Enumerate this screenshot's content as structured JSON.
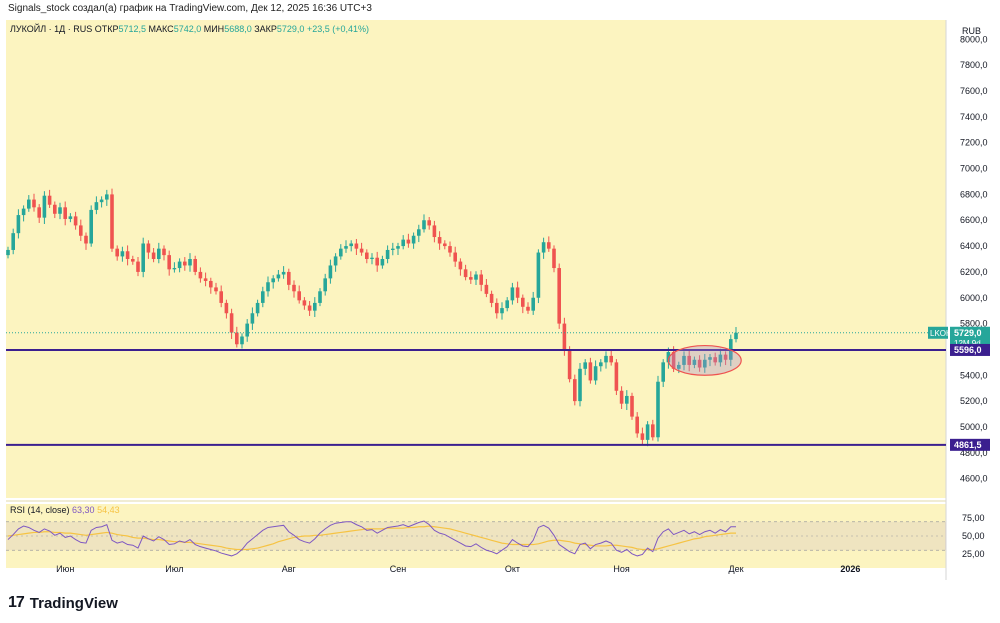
{
  "header": {
    "attribution": "Signals_stock создал(а) график на TradingView.com, Дек 12, 2025 16:36 UTC+3"
  },
  "legend": {
    "symbol": "ЛУКОЙЛ · 1Д · RUS",
    "open_label": "ОТКР",
    "open": "5712,5",
    "high_label": "МАКС",
    "high": "5742,0",
    "low_label": "МИН",
    "low": "5688,0",
    "close_label": "ЗАКР",
    "close": "5729,0",
    "change": "+23,5 (+0,41%)"
  },
  "currency": "RUB",
  "price_badges": {
    "ticker": "LKOH",
    "last": "5729,0",
    "countdown": "12M 9d",
    "level_upper": "5596,0",
    "level_lower": "4861,5"
  },
  "rsi": {
    "title": "RSI (14, close)",
    "value1": "63,30",
    "value2": "54,43",
    "ticks": [
      "75,00",
      "50,00",
      "25,00"
    ]
  },
  "brand": {
    "logo": "17",
    "name": "TradingView"
  },
  "colors": {
    "background": "#fcf4c0",
    "up": "#26a69a",
    "down": "#ef5350",
    "level": "#3b1f8f",
    "rsi_line": "#7e57c2",
    "rsi_ma": "#f6c343"
  },
  "chart_data": {
    "type": "candlestick",
    "title": "ЛУКОЙЛ · 1Д · RUS",
    "currency": "RUB",
    "ylim": [
      4450,
      8150
    ],
    "y_ticks": [
      "4600,0",
      "4800,0",
      "5000,0",
      "5200,0",
      "5400,0",
      "5600,0",
      "5800,0",
      "6000,0",
      "6200,0",
      "6400,0",
      "6600,0",
      "6800,0",
      "7000,0",
      "7200,0",
      "7400,0",
      "7600,0",
      "7800,0",
      "8000,0"
    ],
    "x_ticks": [
      "Июн",
      "Июл",
      "Авг",
      "Сен",
      "Окт",
      "Ноя",
      "Дек",
      "2026"
    ],
    "x_tick_positions": [
      11,
      32,
      54,
      75,
      97,
      118,
      140,
      162
    ],
    "horizontal_levels": [
      5596.0,
      4861.5
    ],
    "highlight_ellipse": {
      "x_range": [
        127,
        141
      ],
      "y_range": [
        5400,
        5630
      ]
    },
    "candle_x_start": 0,
    "candle_x_step": 1,
    "close_series": [
      6370,
      6500,
      6640,
      6690,
      6760,
      6700,
      6620,
      6790,
      6720,
      6650,
      6700,
      6610,
      6630,
      6560,
      6480,
      6420,
      6680,
      6740,
      6760,
      6800,
      6380,
      6320,
      6360,
      6300,
      6280,
      6200,
      6420,
      6350,
      6300,
      6380,
      6330,
      6220,
      6230,
      6280,
      6250,
      6300,
      6200,
      6150,
      6130,
      6080,
      6050,
      5960,
      5880,
      5730,
      5640,
      5700,
      5800,
      5880,
      5960,
      6050,
      6120,
      6150,
      6180,
      6200,
      6100,
      6050,
      5980,
      5940,
      5900,
      5960,
      6050,
      6150,
      6250,
      6320,
      6380,
      6400,
      6420,
      6380,
      6350,
      6300,
      6310,
      6250,
      6300,
      6370,
      6380,
      6400,
      6450,
      6420,
      6480,
      6530,
      6600,
      6560,
      6470,
      6420,
      6400,
      6350,
      6280,
      6220,
      6160,
      6140,
      6180,
      6100,
      6030,
      5960,
      5880,
      5920,
      5980,
      6080,
      6000,
      5930,
      5900,
      6000,
      6350,
      6430,
      6380,
      6230,
      5800,
      5600,
      5370,
      5200,
      5450,
      5500,
      5360,
      5470,
      5500,
      5550,
      5500,
      5280,
      5180,
      5240,
      5080,
      4950,
      4900,
      5020,
      4920,
      5350,
      5500,
      5580,
      5450,
      5480,
      5550,
      5480,
      5520,
      5460,
      5520,
      5540,
      5500,
      5560,
      5520,
      5680,
      5729
    ],
    "rsi_series": [
      45,
      52,
      60,
      64,
      62,
      58,
      55,
      60,
      57,
      51,
      54,
      48,
      50,
      45,
      41,
      40,
      58,
      62,
      63,
      66,
      44,
      40,
      42,
      38,
      37,
      33,
      50,
      46,
      43,
      49,
      45,
      38,
      39,
      43,
      41,
      45,
      38,
      35,
      33,
      31,
      29,
      26,
      24,
      22,
      25,
      31,
      40,
      46,
      52,
      58,
      62,
      63,
      64,
      65,
      56,
      51,
      45,
      42,
      40,
      46,
      54,
      60,
      65,
      68,
      69,
      70,
      70,
      66,
      63,
      58,
      59,
      54,
      58,
      62,
      63,
      64,
      66,
      63,
      66,
      69,
      71,
      66,
      58,
      54,
      52,
      48,
      44,
      40,
      36,
      35,
      39,
      34,
      30,
      28,
      25,
      30,
      35,
      45,
      40,
      36,
      35,
      44,
      62,
      65,
      61,
      51,
      38,
      33,
      28,
      25,
      38,
      40,
      32,
      38,
      40,
      43,
      40,
      30,
      27,
      31,
      25,
      22,
      24,
      33,
      28,
      47,
      56,
      60,
      52,
      55,
      58,
      53,
      56,
      52,
      56,
      58,
      54,
      59,
      56,
      63,
      63
    ],
    "rsi_ma_series": [
      50,
      51,
      52,
      53,
      54,
      55,
      55,
      56,
      56,
      55,
      55,
      54,
      54,
      53,
      52,
      51,
      52,
      53,
      54,
      55,
      54,
      52,
      51,
      50,
      48,
      47,
      47,
      46,
      45,
      45,
      44,
      43,
      42,
      42,
      41,
      41,
      40,
      39,
      38,
      37,
      36,
      35,
      33,
      32,
      31,
      31,
      31,
      32,
      33,
      35,
      37,
      39,
      42,
      44,
      46,
      48,
      49,
      50,
      50,
      51,
      51,
      52,
      53,
      54,
      55,
      56,
      57,
      58,
      59,
      60,
      60,
      60,
      60,
      61,
      61,
      61,
      61,
      62,
      62,
      63,
      63,
      64,
      63,
      62,
      61,
      60,
      58,
      56,
      54,
      52,
      50,
      48,
      46,
      44,
      42,
      40,
      39,
      38,
      38,
      38,
      38,
      38,
      39,
      41,
      43,
      44,
      44,
      43,
      42,
      40,
      39,
      38,
      37,
      36,
      36,
      36,
      37,
      37,
      36,
      35,
      34,
      32,
      31,
      31,
      31,
      32,
      34,
      36,
      38,
      40,
      42,
      44,
      46,
      47,
      49,
      50,
      51,
      52,
      53,
      54,
      54
    ],
    "rsi_ylim": [
      5,
      95
    ]
  }
}
